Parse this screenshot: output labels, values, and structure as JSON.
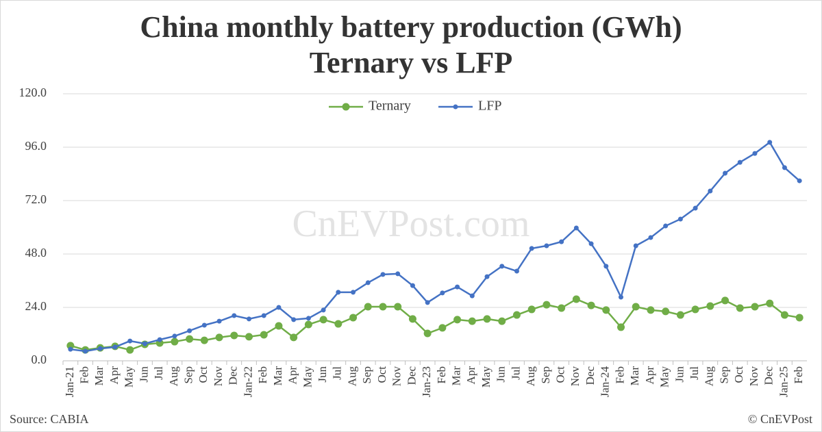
{
  "chart_data": {
    "type": "line",
    "title": "China monthly battery production (GWh)",
    "subtitle": "Ternary vs LFP",
    "watermark": "CnEVPost.com",
    "source": "Source: CABIA",
    "credit": "© CnEVPost",
    "legend": "top",
    "grid": true,
    "categories": [
      "Jan-21",
      "Feb",
      "Mar",
      "Apr",
      "May",
      "Jun",
      "Jul",
      "Aug",
      "Sep",
      "Oct",
      "Nov",
      "Dec",
      "Jan-22",
      "Feb",
      "Mar",
      "Apr",
      "May",
      "Jun",
      "Jul",
      "Aug",
      "Sep",
      "Oct",
      "Nov",
      "Dec",
      "Jan-23",
      "Feb",
      "Mar",
      "Apr",
      "May",
      "Jun",
      "Jul",
      "Aug",
      "Sep",
      "Oct",
      "Nov",
      "Dec",
      "Jan-24",
      "Feb",
      "Mar",
      "Apr",
      "May",
      "Jun",
      "Jul",
      "Aug",
      "Sep",
      "Oct",
      "Nov",
      "Dec",
      "Jan-25",
      "Feb"
    ],
    "series": [
      {
        "name": "Ternary",
        "color": "#70ad47",
        "values": [
          6.8,
          4.9,
          5.8,
          6.5,
          4.9,
          7.4,
          8.0,
          8.6,
          9.8,
          9.2,
          10.5,
          11.4,
          10.8,
          11.7,
          15.7,
          10.5,
          16.3,
          18.5,
          16.6,
          19.4,
          24.3,
          24.3,
          24.3,
          18.8,
          12.3,
          14.8,
          18.5,
          17.8,
          18.8,
          17.8,
          20.6,
          23.1,
          25.2,
          23.7,
          27.7,
          24.9,
          22.8,
          15.1,
          24.3,
          22.8,
          22.2,
          20.6,
          23.1,
          24.6,
          27.1,
          23.7,
          24.3,
          25.8,
          20.6,
          19.4
        ]
      },
      {
        "name": "LFP",
        "color": "#4472c4",
        "values": [
          5.2,
          4.3,
          5.5,
          6.2,
          8.9,
          7.7,
          9.5,
          11.1,
          13.5,
          16.0,
          17.8,
          20.3,
          18.8,
          20.3,
          24.0,
          18.5,
          19.1,
          22.8,
          30.8,
          30.8,
          35.1,
          38.8,
          39.1,
          33.8,
          26.2,
          30.5,
          33.2,
          29.2,
          37.8,
          42.5,
          40.3,
          50.5,
          51.7,
          53.5,
          59.7,
          52.6,
          42.5,
          28.6,
          51.7,
          55.4,
          60.6,
          63.7,
          68.6,
          76.3,
          84.3,
          89.2,
          93.2,
          98.2,
          86.8,
          80.9
        ]
      }
    ],
    "ylim": [
      0,
      120
    ],
    "yticks": [
      {
        "value": 0,
        "label": "0.0"
      },
      {
        "value": 24,
        "label": "24.0"
      },
      {
        "value": 48,
        "label": "48.0"
      },
      {
        "value": 72,
        "label": "72.0"
      },
      {
        "value": 96,
        "label": "96.0"
      },
      {
        "value": 120,
        "label": "120.0"
      }
    ]
  }
}
